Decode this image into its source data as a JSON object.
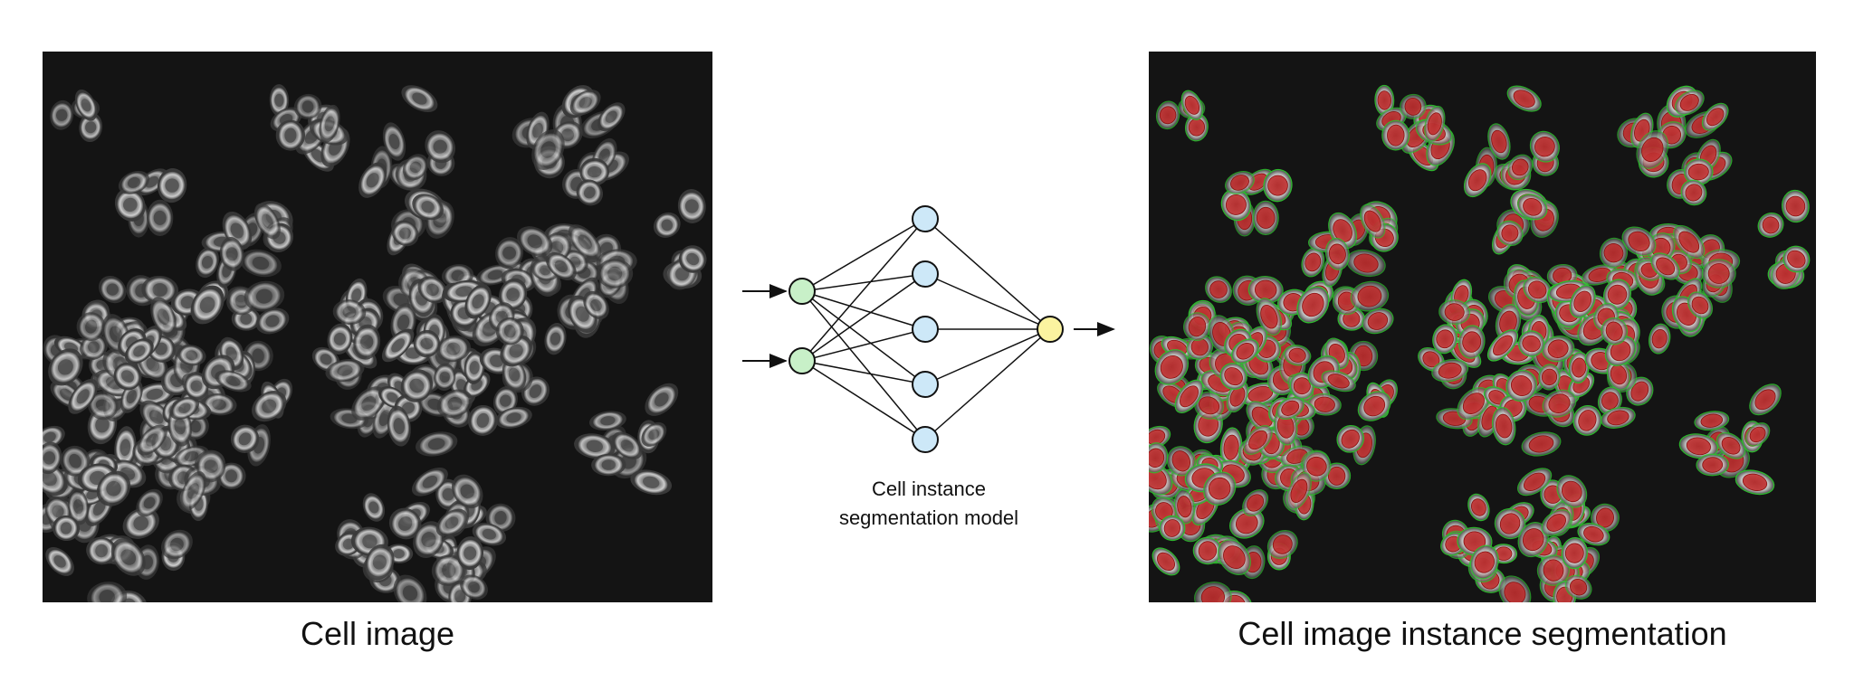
{
  "left_image": {
    "caption": "Cell image"
  },
  "model": {
    "caption_line1": "Cell instance",
    "caption_line2": "segmentation model",
    "input_count": 2,
    "hidden_count": 5,
    "output_count": 1,
    "colors": {
      "input_fill": "#c8f0c8",
      "hidden_fill": "#cde8f8",
      "output_fill": "#fbf3a0",
      "stroke": "#111111"
    }
  },
  "right_image": {
    "caption": "Cell image instance segmentation",
    "colors": {
      "nucleus_mask": "#c41e1e",
      "cell_outline": "#2fbf2f"
    }
  }
}
